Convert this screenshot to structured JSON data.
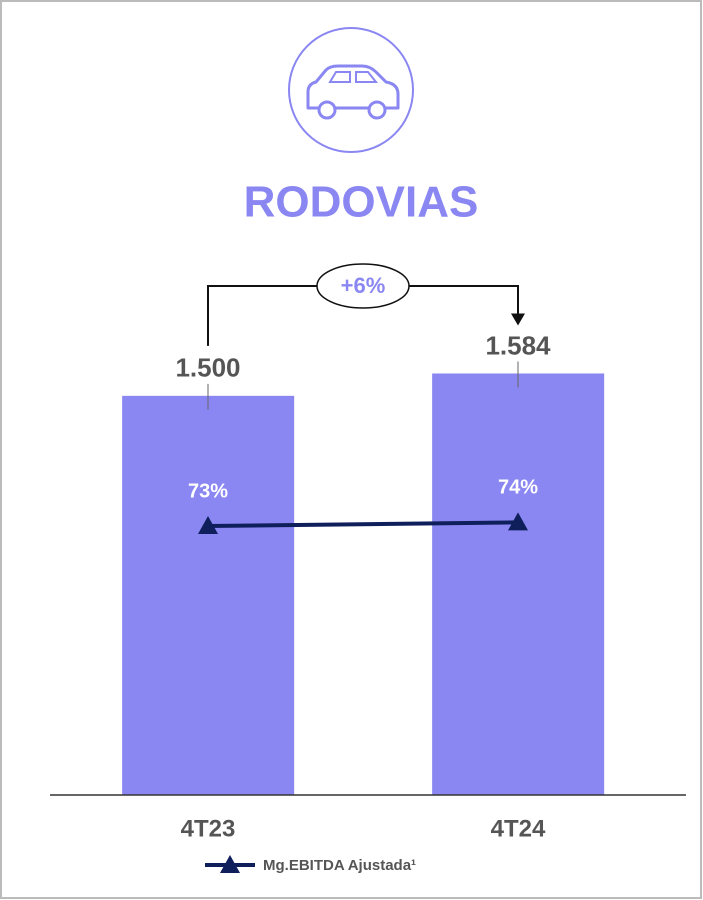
{
  "chart_data": {
    "type": "bar",
    "title": "RODOVIAS",
    "annotation": "+6%",
    "categories": [
      "4T23",
      "4T24"
    ],
    "series": [
      {
        "type": "bar",
        "color": "#8a87f2",
        "values": [
          1500,
          1584
        ],
        "value_labels": [
          "1.500",
          "1.584"
        ]
      },
      {
        "type": "line",
        "name": "Mg.EBITDA Ajustada¹",
        "axis": "y2",
        "color": "#0f1f5c",
        "values": [
          73,
          74
        ],
        "value_labels": [
          "73%",
          "74%"
        ]
      }
    ],
    "ylim": [
      0,
      1800
    ],
    "y2lim": [
      0,
      130
    ]
  }
}
